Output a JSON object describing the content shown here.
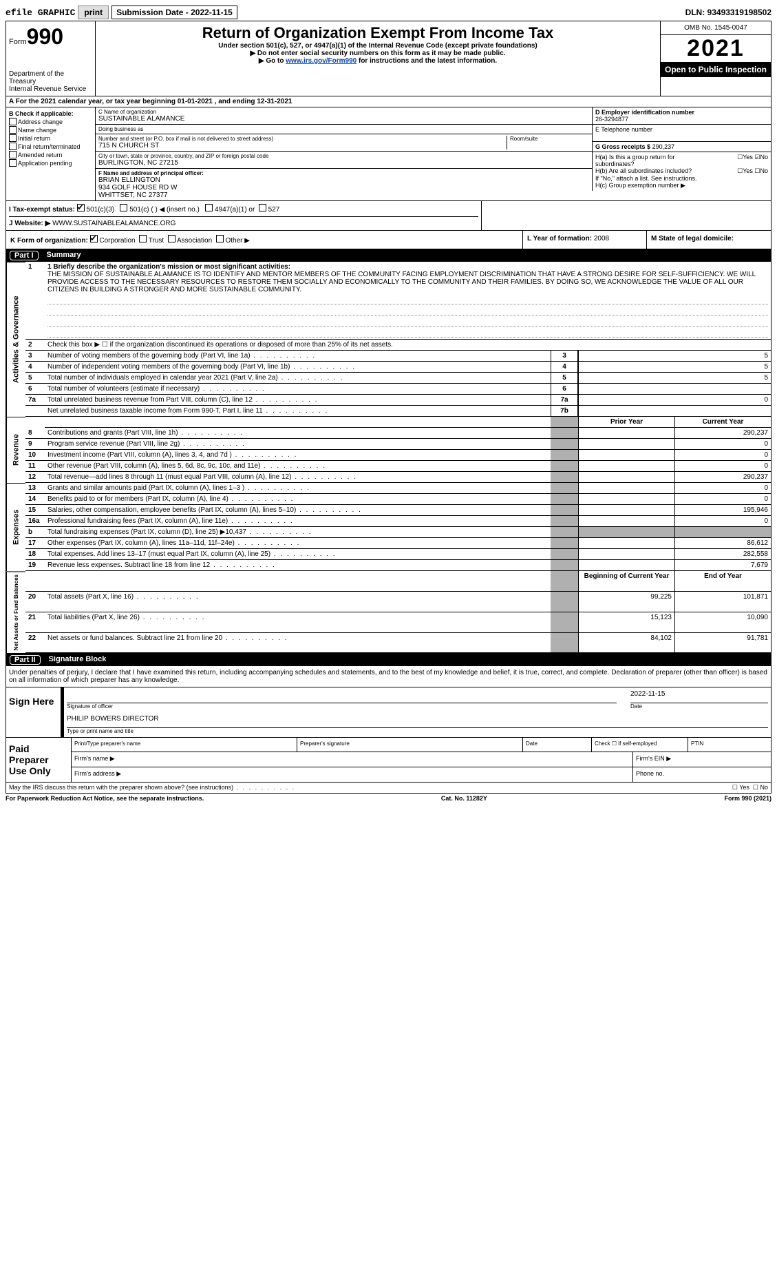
{
  "topbar": {
    "efile": "efile GRAPHIC",
    "print": "print",
    "sub_label": "Submission Date - 2022-11-15",
    "dln": "DLN: 93493319198502"
  },
  "header": {
    "form_word": "Form",
    "form_num": "990",
    "dept": "Department of the Treasury\nInternal Revenue Service",
    "title": "Return of Organization Exempt From Income Tax",
    "sub": "Under section 501(c), 527, or 4947(a)(1) of the Internal Revenue Code (except private foundations)",
    "instr1": "▶ Do not enter social security numbers on this form as it may be made public.",
    "instr2_pre": "▶ Go to ",
    "instr2_link": "www.irs.gov/Form990",
    "instr2_post": " for instructions and the latest information.",
    "omb": "OMB No. 1545-0047",
    "year": "2021",
    "open": "Open to Public Inspection"
  },
  "section_a": "A For the 2021 calendar year, or tax year beginning 01-01-2021   , and ending 12-31-2021",
  "b": {
    "label": "B Check if applicable:",
    "opts": [
      "Address change",
      "Name change",
      "Initial return",
      "Final return/terminated",
      "Amended return",
      "Application pending"
    ]
  },
  "c": {
    "name_lbl": "C Name of organization",
    "name": "SUSTAINABLE ALAMANCE",
    "dba_lbl": "Doing business as",
    "dba": "",
    "addr_lbl": "Number and street (or P.O. box if mail is not delivered to street address)",
    "room_lbl": "Room/suite",
    "addr": "715 N CHURCH ST",
    "city_lbl": "City or town, state or province, country, and ZIP or foreign postal code",
    "city": "BURLINGTON, NC  27215"
  },
  "d": {
    "lbl": "D Employer identification number",
    "val": "26-3294877"
  },
  "e": {
    "lbl": "E Telephone number",
    "val": ""
  },
  "g": {
    "lbl": "G Gross receipts $",
    "val": "290,237"
  },
  "f": {
    "lbl": "F  Name and address of principal officer:",
    "name": "BRIAN ELLINGTON",
    "addr1": "934 GOLF HOUSE RD W",
    "addr2": "WHITTSET, NC  27377"
  },
  "h": {
    "a": "H(a)  Is this a group return for subordinates?",
    "b": "H(b)  Are all subordinates included?",
    "note": "If \"No,\" attach a list. See instructions.",
    "c": "H(c)  Group exemption number ▶",
    "yes": "Yes",
    "no": "No"
  },
  "i": {
    "lbl": "I   Tax-exempt status:",
    "opts": [
      "501(c)(3)",
      "501(c) (  ) ◀ (insert no.)",
      "4947(a)(1) or",
      "527"
    ]
  },
  "j": {
    "lbl": "J   Website: ▶",
    "val": "WWW.SUSTAINABLEALAMANCE.ORG"
  },
  "k": {
    "lbl": "K Form of organization:",
    "opts": [
      "Corporation",
      "Trust",
      "Association",
      "Other ▶"
    ]
  },
  "l": {
    "lbl": "L Year of formation:",
    "val": "2008"
  },
  "m": {
    "lbl": "M State of legal domicile:",
    "val": ""
  },
  "part1": {
    "partno": "Part I",
    "title": "Summary"
  },
  "summary": {
    "line1_lbl": "1  Briefly describe the organization's mission or most significant activities:",
    "mission": "THE MISSION OF SUSTAINABLE ALAMANCE IS TO IDENTIFY AND MENTOR MEMBERS OF THE COMMUNITY FACING EMPLOYMENT DISCRIMINATION THAT HAVE A STRONG DESIRE FOR SELF-SUFFICIENCY. WE WILL PROVIDE ACCESS TO THE NECESSARY RESOURCES TO RESTORE THEM SOCIALLY AND ECONOMICALLY TO THE COMMUNITY AND THEIR FAMILIES. BY DOING SO, WE ACKNOWLEDGE THE VALUE OF ALL OUR CITIZENS IN BUILDING A STRONGER AND MORE SUSTAINABLE COMMUNITY.",
    "line2": "Check this box ▶ ☐  if the organization discontinued its operations or disposed of more than 25% of its net assets.",
    "rows_gov": [
      {
        "n": "3",
        "d": "Number of voting members of the governing body (Part VI, line 1a)",
        "box": "3",
        "v": "5"
      },
      {
        "n": "4",
        "d": "Number of independent voting members of the governing body (Part VI, line 1b)",
        "box": "4",
        "v": "5"
      },
      {
        "n": "5",
        "d": "Total number of individuals employed in calendar year 2021 (Part V, line 2a)",
        "box": "5",
        "v": "5"
      },
      {
        "n": "6",
        "d": "Total number of volunteers (estimate if necessary)",
        "box": "6",
        "v": ""
      },
      {
        "n": "7a",
        "d": "Total unrelated business revenue from Part VIII, column (C), line 12",
        "box": "7a",
        "v": "0"
      },
      {
        "n": "",
        "d": "Net unrelated business taxable income from Form 990-T, Part I, line 11",
        "box": "7b",
        "v": ""
      }
    ],
    "col_prior": "Prior Year",
    "col_curr": "Current Year",
    "rows_rev": [
      {
        "n": "8",
        "d": "Contributions and grants (Part VIII, line 1h)",
        "p": "",
        "c": "290,237"
      },
      {
        "n": "9",
        "d": "Program service revenue (Part VIII, line 2g)",
        "p": "",
        "c": "0"
      },
      {
        "n": "10",
        "d": "Investment income (Part VIII, column (A), lines 3, 4, and 7d )",
        "p": "",
        "c": "0"
      },
      {
        "n": "11",
        "d": "Other revenue (Part VIII, column (A), lines 5, 6d, 8c, 9c, 10c, and 11e)",
        "p": "",
        "c": "0"
      },
      {
        "n": "12",
        "d": "Total revenue—add lines 8 through 11 (must equal Part VIII, column (A), line 12)",
        "p": "",
        "c": "290,237"
      }
    ],
    "rows_exp": [
      {
        "n": "13",
        "d": "Grants and similar amounts paid (Part IX, column (A), lines 1–3 )",
        "p": "",
        "c": "0"
      },
      {
        "n": "14",
        "d": "Benefits paid to or for members (Part IX, column (A), line 4)",
        "p": "",
        "c": "0"
      },
      {
        "n": "15",
        "d": "Salaries, other compensation, employee benefits (Part IX, column (A), lines 5–10)",
        "p": "",
        "c": "195,946"
      },
      {
        "n": "16a",
        "d": "Professional fundraising fees (Part IX, column (A), line 11e)",
        "p": "",
        "c": "0"
      },
      {
        "n": "b",
        "d": "Total fundraising expenses (Part IX, column (D), line 25) ▶10,437",
        "p": "shaded",
        "c": "shaded"
      },
      {
        "n": "17",
        "d": "Other expenses (Part IX, column (A), lines 11a–11d, 11f–24e)",
        "p": "",
        "c": "86,612"
      },
      {
        "n": "18",
        "d": "Total expenses. Add lines 13–17 (must equal Part IX, column (A), line 25)",
        "p": "",
        "c": "282,558"
      },
      {
        "n": "19",
        "d": "Revenue less expenses. Subtract line 18 from line 12",
        "p": "",
        "c": "7,679"
      }
    ],
    "col_begin": "Beginning of Current Year",
    "col_end": "End of Year",
    "rows_net": [
      {
        "n": "20",
        "d": "Total assets (Part X, line 16)",
        "p": "99,225",
        "c": "101,871"
      },
      {
        "n": "21",
        "d": "Total liabilities (Part X, line 26)",
        "p": "15,123",
        "c": "10,090"
      },
      {
        "n": "22",
        "d": "Net assets or fund balances. Subtract line 21 from line 20",
        "p": "84,102",
        "c": "91,781"
      }
    ],
    "rot_gov": "Activities & Governance",
    "rot_rev": "Revenue",
    "rot_exp": "Expenses",
    "rot_net": "Net Assets or Fund Balances"
  },
  "part2": {
    "partno": "Part II",
    "title": "Signature Block"
  },
  "sig": {
    "decl": "Under penalties of perjury, I declare that I have examined this return, including accompanying schedules and statements, and to the best of my knowledge and belief, it is true, correct, and complete. Declaration of preparer (other than officer) is based on all information of which preparer has any knowledge.",
    "sign_here": "Sign Here",
    "sig_of_officer": "Signature of officer",
    "date_lbl": "Date",
    "date": "2022-11-15",
    "name": "PHILIP BOWERS  DIRECTOR",
    "name_lbl": "Type or print name and title"
  },
  "paid": {
    "lbl": "Paid Preparer Use Only",
    "h1": "Print/Type preparer's name",
    "h2": "Preparer's signature",
    "h3": "Date",
    "h4": "Check ☐ if self-employed",
    "h5": "PTIN",
    "firm_name": "Firm's name    ▶",
    "firm_ein": "Firm's EIN ▶",
    "firm_addr": "Firm's address ▶",
    "phone": "Phone no."
  },
  "footer": {
    "discuss": "May the IRS discuss this return with the preparer shown above? (see instructions)",
    "yes": "Yes",
    "no": "No",
    "paperwork": "For Paperwork Reduction Act Notice, see the separate instructions.",
    "cat": "Cat. No. 11282Y",
    "form": "Form 990 (2021)"
  }
}
